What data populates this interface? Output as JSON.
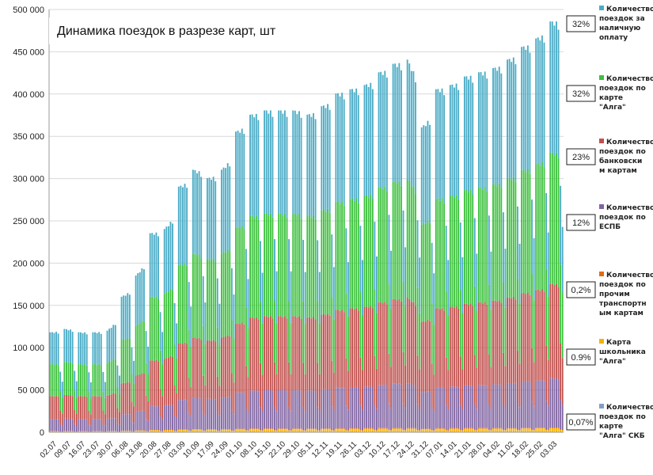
{
  "chart_data": {
    "type": "bar",
    "stacked": true,
    "title": "Динамика поездок в разрезе карт, шт",
    "xlabel": "",
    "ylabel": "",
    "ylim": [
      0,
      500000
    ],
    "yticks": [
      0,
      50000,
      100000,
      150000,
      200000,
      250000,
      300000,
      350000,
      400000,
      450000,
      500000
    ],
    "ytick_labels": [
      "0",
      "50 000",
      "100 000",
      "150 000",
      "200 000",
      "250 000",
      "300 000",
      "350 000",
      "400 000",
      "450 000",
      "500 000"
    ],
    "xtick_labels": [
      "02.07",
      "09.07",
      "16.07",
      "23.07",
      "30.07",
      "06.08",
      "13.08",
      "20.08",
      "27.08",
      "03.09",
      "10.09",
      "17.09",
      "24.09",
      "01.10",
      "08.10",
      "15.10",
      "22.10",
      "29.10",
      "05.11",
      "12.11",
      "19.11",
      "26.11",
      "03.12",
      "10.12",
      "17.12",
      "24.12",
      "31.12",
      "07.01",
      "14.01",
      "21.01",
      "28.01",
      "04.02",
      "11.02",
      "18.02",
      "25.02",
      "03.03"
    ],
    "days_per_tick": 7,
    "weekly_totals": [
      118000,
      122000,
      118000,
      118000,
      120000,
      160000,
      185000,
      235000,
      240000,
      290000,
      310000,
      300000,
      310000,
      355000,
      375000,
      380000,
      380000,
      380000,
      375000,
      385000,
      400000,
      405000,
      410000,
      425000,
      435000,
      440000,
      360000,
      405000,
      410000,
      420000,
      425000,
      430000,
      440000,
      455000,
      465000,
      485000
    ],
    "series": [
      {
        "name": "Количество поездок \"Алга\" СКБ",
        "color": "#7f9fc7",
        "share": 0.0007
      },
      {
        "name": "Карта школьника \"Алга\"",
        "color": "#f3b300",
        "share": 0.009
      },
      {
        "name": "Количество поездок по прочим транспортным картам",
        "color": "#e36c0a",
        "share": 0.002
      },
      {
        "name": "Количество поездок по ЕСПБ",
        "color": "#8064a2",
        "share": 0.12
      },
      {
        "name": "Количество поездок по банковским картам",
        "color": "#c0504d",
        "share": 0.23
      },
      {
        "name": "Количество поездок по карте \"Алга\"",
        "color": "#3cc13c",
        "share": 0.32
      },
      {
        "name": "Количество поездок за наличную оплату",
        "color": "#4bacc6",
        "share": 0.32
      }
    ]
  },
  "legend": {
    "items": [
      {
        "lines": [
          "Количество",
          "поездок за",
          "наличную",
          "оплату"
        ],
        "color": "#4bacc6",
        "pct": "32%"
      },
      {
        "lines": [
          "Количество",
          "поездок по",
          "карте",
          "\"Алга\""
        ],
        "color": "#3cc13c",
        "pct": "32%"
      },
      {
        "lines": [
          "Количество",
          "поездок по",
          "банковски",
          "м картам"
        ],
        "color": "#c0504d",
        "pct": "23%"
      },
      {
        "lines": [
          "Количество",
          "поездок по",
          "ЕСПБ"
        ],
        "color": "#8064a2",
        "pct": "12%"
      },
      {
        "lines": [
          "Количество",
          "поездок по",
          "прочим",
          "транспортн",
          "ым картам"
        ],
        "color": "#e36c0a",
        "pct": "0,2%"
      },
      {
        "lines": [
          "Карта",
          "школьника",
          "\"Алга\""
        ],
        "color": "#f3b300",
        "pct": "0.9%"
      },
      {
        "lines": [
          "Количество",
          "поездок по",
          "карте",
          "\"Алга\" СКБ"
        ],
        "color": "#7f9fc7",
        "pct": "0,07%"
      }
    ]
  }
}
